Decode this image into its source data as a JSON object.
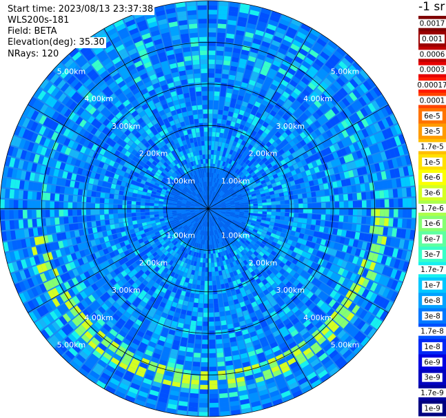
{
  "header": {
    "start_time": "Start time: 2023/08/13 23:37:38",
    "instrument": "WLS200s-181",
    "field": "Field: BETA",
    "elevation": "Elevation(deg): 35.30",
    "nrays": "NRays: 120"
  },
  "colorbar": {
    "unit": "-1 sr",
    "labels": [
      "0.0017",
      "0.001",
      "0.0006",
      "0.0003",
      "0.00017",
      "0.0001",
      "6e-5",
      "3e-5",
      "1.7e-5",
      "1e-5",
      "6e-6",
      "3e-6",
      "1.7e-6",
      "1e-6",
      "6e-7",
      "3e-7",
      "1.7e-7",
      "1e-7",
      "6e-8",
      "3e-8",
      "1.7e-8",
      "1e-8",
      "6e-9",
      "3e-9",
      "1.7e-9",
      "1e-9"
    ],
    "colors": [
      "#7f0000",
      "#9a0000",
      "#bf0000",
      "#e60000",
      "#ff1a00",
      "#ff4400",
      "#ff7300",
      "#ff9b00",
      "#ffbe00",
      "#ffe000",
      "#fbff00",
      "#d4ff22",
      "#acff4b",
      "#85ff72",
      "#5effa0",
      "#38ffc8",
      "#17f0ef",
      "#00c8ff",
      "#00a2ff",
      "#0078ff",
      "#0050ff",
      "#0028f5",
      "#0000e0",
      "#0000bf",
      "#00009e",
      "#000080"
    ]
  },
  "chart_data": {
    "type": "heatmap",
    "projection": "polar plan-position indicator (PPI)",
    "field": "BETA",
    "elevation_deg": 35.3,
    "nrays": 120,
    "range_rings_km": [
      1.0,
      2.0,
      3.0,
      4.0,
      5.0
    ],
    "ring_labels": [
      "1.00km",
      "2.00km",
      "3.00km",
      "4.00km",
      "5.00km"
    ],
    "spoke_spacing_deg": 30,
    "max_range_km": 5.0,
    "dominant_value": "about 1e-8 to 3e-8",
    "enhanced_arc": {
      "value": "about 1e-6",
      "range_km": [
        3.9,
        4.3
      ],
      "azimuth_deg": [
        90,
        260
      ]
    },
    "colorbar_scale": "log"
  }
}
